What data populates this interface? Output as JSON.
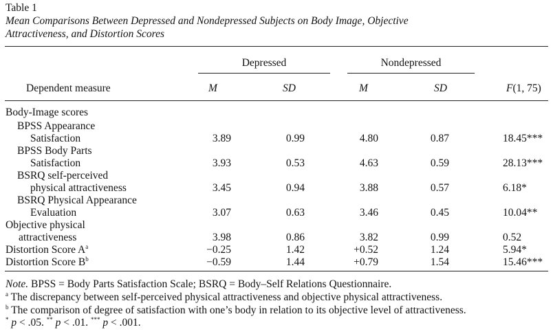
{
  "table": {
    "label": "Table 1",
    "title_line1": "Mean Comparisons Between Depressed and Nondepressed Subjects on Body Image, Objective",
    "title_line2": "Attractiveness, and Distortion Scores",
    "groups": {
      "depressed": "Depressed",
      "nondepressed": "Nondepressed"
    },
    "columns": {
      "measure": "Dependent measure",
      "m1": "M",
      "sd1": "SD",
      "m2": "M",
      "sd2": "SD",
      "f": "F(1, 75)"
    },
    "section_body_image": "Body-Image scores",
    "rows": [
      {
        "label1": "BPSS Appearance",
        "label2": "Satisfaction",
        "m1": "3.89",
        "sd1": "0.99",
        "m2": "4.80",
        "sd2": "0.87",
        "f": "18.45***"
      },
      {
        "label1": "BPSS Body Parts",
        "label2": "Satisfaction",
        "m1": "3.93",
        "sd1": "0.53",
        "m2": "4.63",
        "sd2": "0.59",
        "f": "28.13***"
      },
      {
        "label1": "BSRQ self-perceived",
        "label2": "physical attractiveness",
        "m1": "3.45",
        "sd1": "0.94",
        "m2": "3.88",
        "sd2": "0.57",
        "f": "6.18*"
      },
      {
        "label1": "BSRQ Physical Appearance",
        "label2": "Evaluation",
        "m1": "3.07",
        "sd1": "0.63",
        "m2": "3.46",
        "sd2": "0.45",
        "f": "10.04**"
      },
      {
        "label1": "Objective physical",
        "label2": "attractiveness",
        "m1": "3.98",
        "sd1": "0.86",
        "m2": "3.82",
        "sd2": "0.99",
        "f": "0.52"
      },
      {
        "label1": "Distortion Score A",
        "sup": "a",
        "m1": "−0.25",
        "sd1": "1.42",
        "m2": "+0.52",
        "sd2": "1.24",
        "f": "5.94*"
      },
      {
        "label1": "Distortion Score B",
        "sup": "b",
        "m1": "−0.59",
        "sd1": "1.44",
        "m2": "+0.79",
        "sd2": "1.54",
        "f": "15.46***"
      }
    ],
    "notes": {
      "note_label": "Note.",
      "note_text": " BPSS = Body Parts Satisfaction Scale; BSRQ = Body–Self Relations Questionnaire.",
      "a_mark": "a",
      "a_text": " The discrepancy between self-perceived physical attractiveness and objective physical attractiveness.",
      "b_mark": "b",
      "b_text": " The comparison of degree of satisfaction with one’s body in relation to its objective level of attractiveness.",
      "p1_mark": "*",
      "p1_text": " p",
      "p1_val": " < .05. ",
      "p2_mark": "**",
      "p2_text": " p",
      "p2_val": " < .01. ",
      "p3_mark": "***",
      "p3_text": " p",
      "p3_val": " < .001."
    }
  }
}
